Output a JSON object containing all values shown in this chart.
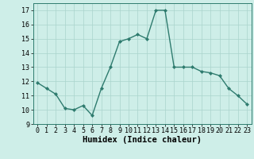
{
  "x": [
    0,
    1,
    2,
    3,
    4,
    5,
    6,
    7,
    8,
    9,
    10,
    11,
    12,
    13,
    14,
    15,
    16,
    17,
    18,
    19,
    20,
    21,
    22,
    23
  ],
  "y": [
    11.9,
    11.5,
    11.1,
    10.1,
    10.0,
    10.3,
    9.6,
    11.5,
    13.0,
    14.8,
    15.0,
    15.3,
    15.0,
    17.0,
    17.0,
    13.0,
    13.0,
    13.0,
    12.7,
    12.6,
    12.4,
    11.5,
    11.0,
    10.4
  ],
  "xlabel": "Humidex (Indice chaleur)",
  "ylim": [
    9,
    17.5
  ],
  "xlim": [
    -0.5,
    23.5
  ],
  "yticks": [
    9,
    10,
    11,
    12,
    13,
    14,
    15,
    16,
    17
  ],
  "xticks": [
    0,
    1,
    2,
    3,
    4,
    5,
    6,
    7,
    8,
    9,
    10,
    11,
    12,
    13,
    14,
    15,
    16,
    17,
    18,
    19,
    20,
    21,
    22,
    23
  ],
  "line_color": "#2e7b6e",
  "bg_color": "#ceeee8",
  "grid_color": "#aad4cc",
  "marker": "D",
  "marker_size": 2.0,
  "line_width": 1.0,
  "tick_fontsize": 6.0,
  "xlabel_fontsize": 7.5
}
